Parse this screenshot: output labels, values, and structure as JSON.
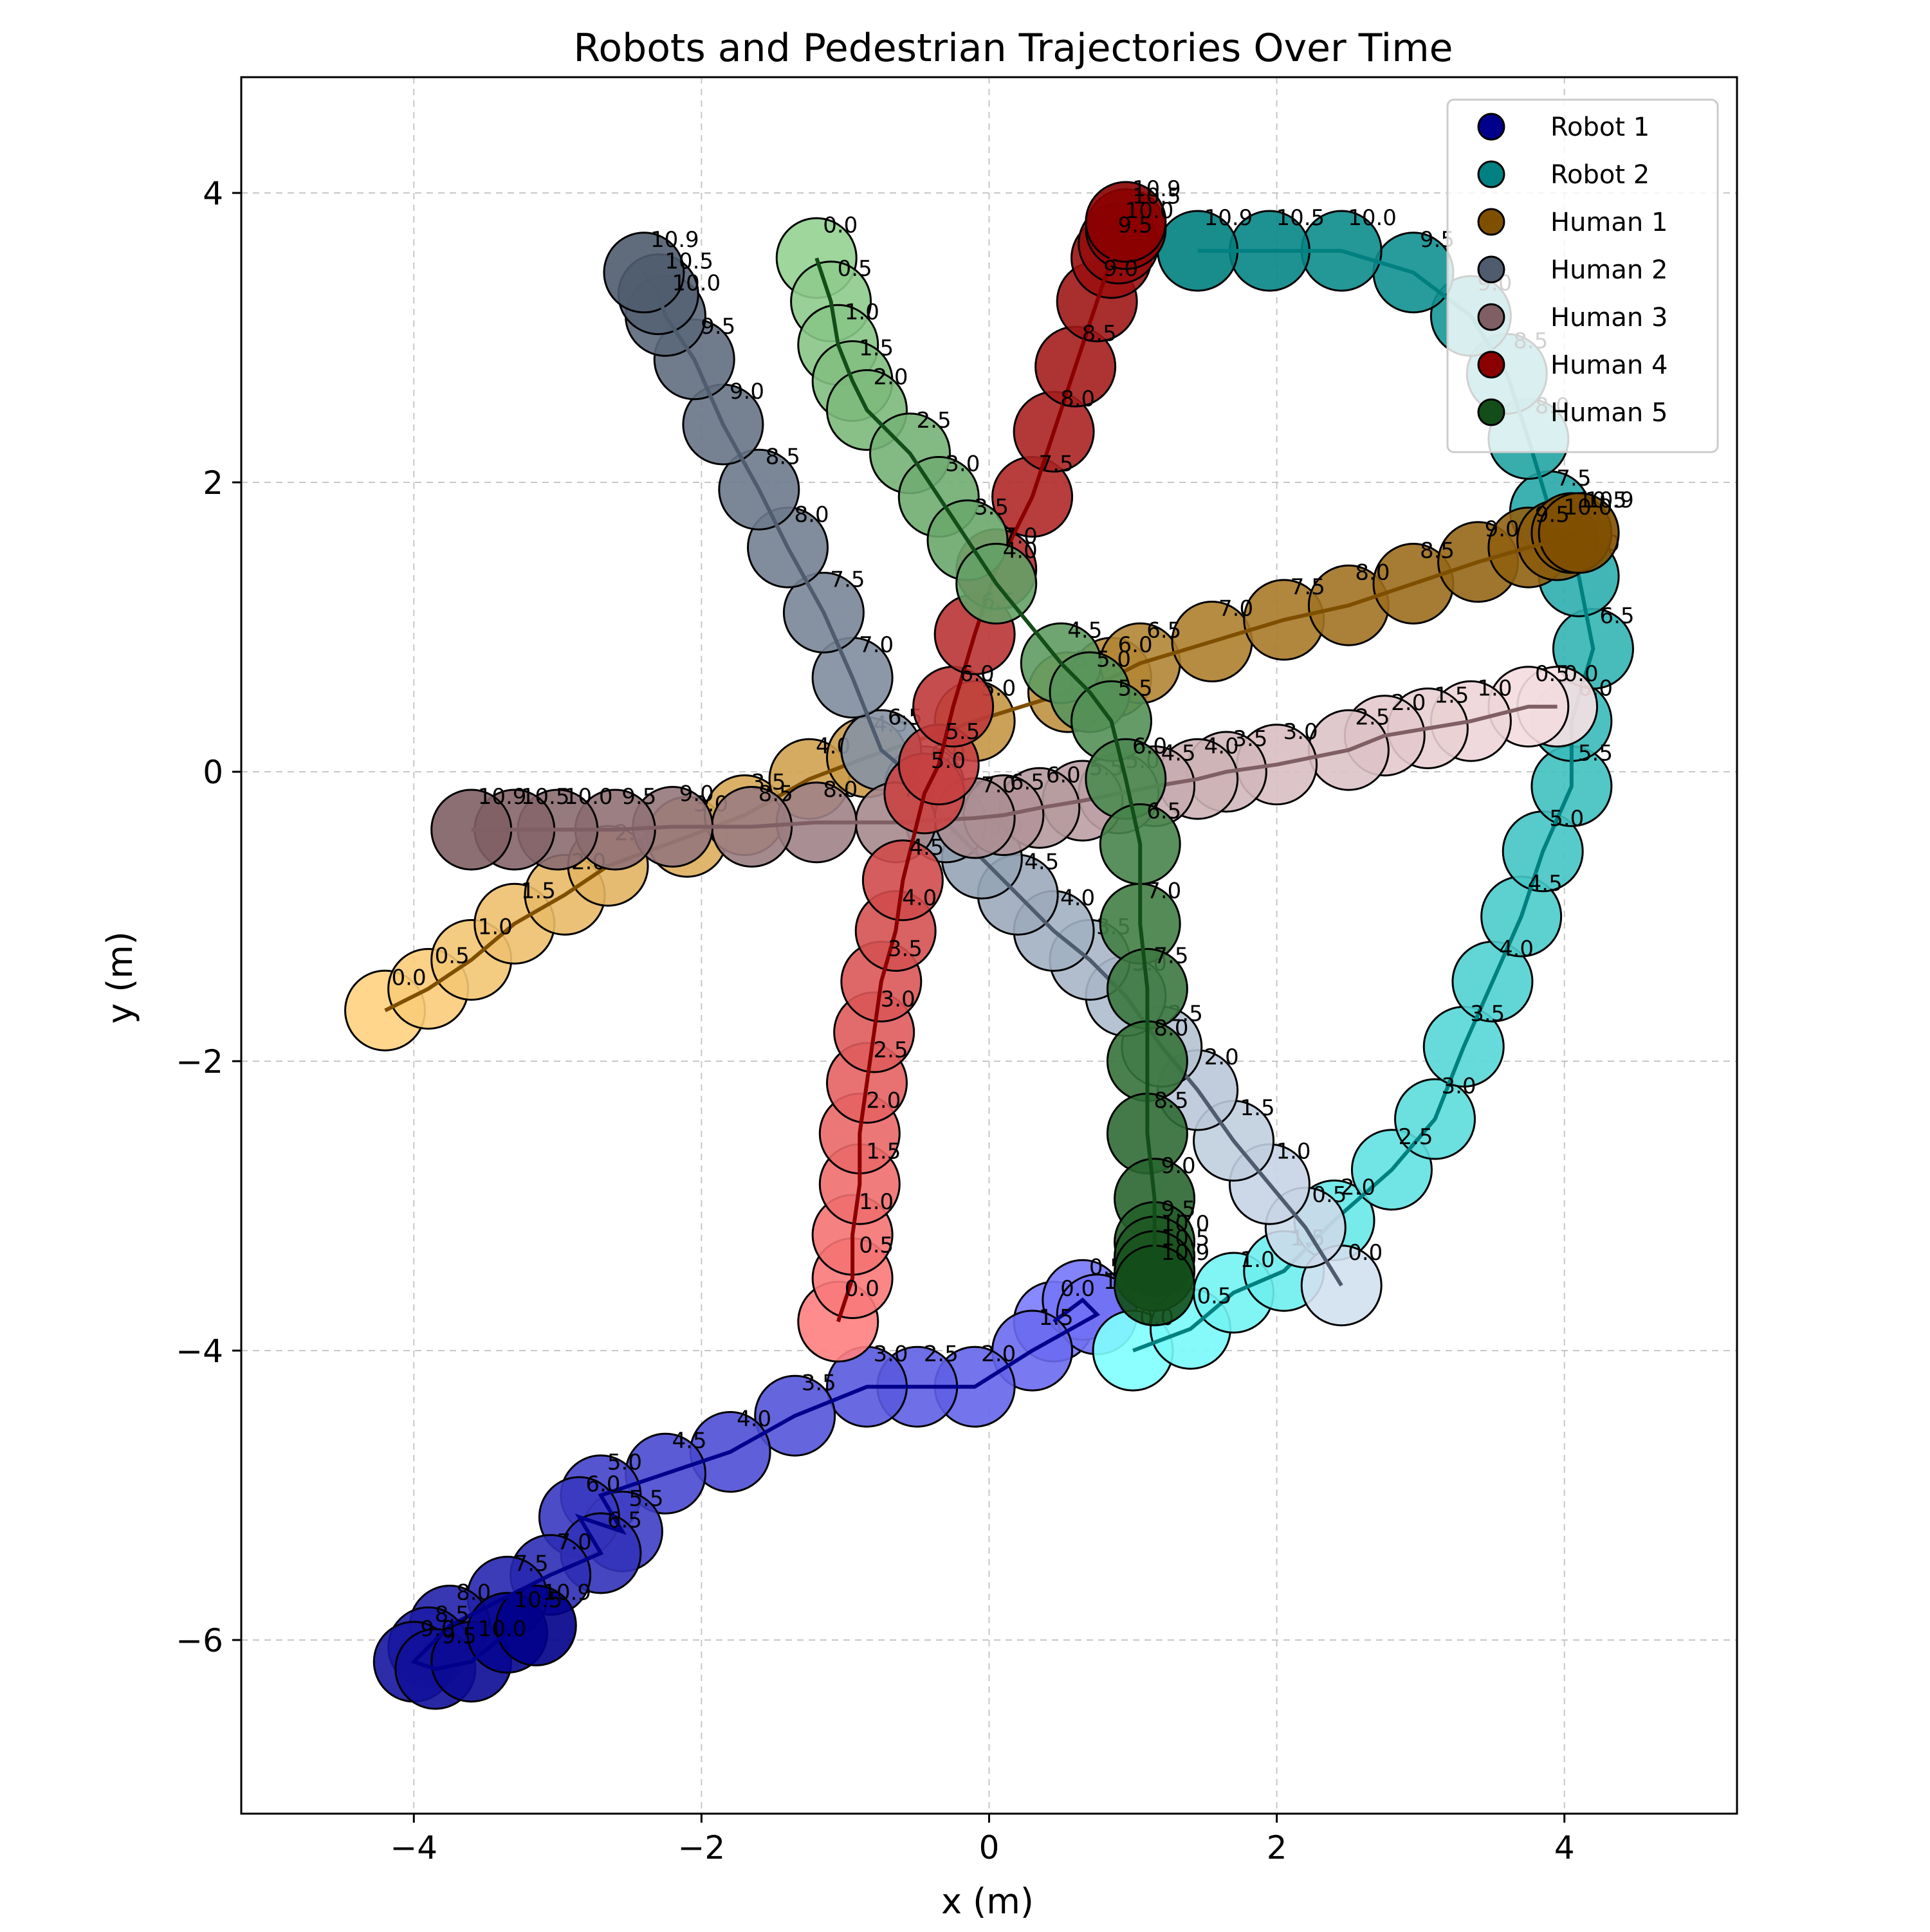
{
  "chart_data": {
    "type": "scatter",
    "title": "Robots and Pedestrian Trajectories Over Time",
    "xlabel": "x (m)",
    "ylabel": "y (m)",
    "xlim": [
      -5.2,
      5.2
    ],
    "ylim": [
      -7.2,
      4.8
    ],
    "xticks": [
      -4,
      -2,
      0,
      2,
      4
    ],
    "yticks": [
      -6,
      -4,
      -2,
      0,
      2,
      4
    ],
    "xtick_labels": [
      "−4",
      "−2",
      "0",
      "2",
      "4"
    ],
    "ytick_labels": [
      "−6",
      "−4",
      "−2",
      "0",
      "2",
      "4"
    ],
    "grid": true,
    "legend_position": "top-right",
    "series": [
      {
        "name": "Robot 1",
        "color": "#00008b",
        "start_color": "#7b7bff",
        "points": [
          {
            "t": "0.0",
            "x": 0.45,
            "y": -3.8
          },
          {
            "t": "0.5",
            "x": 0.65,
            "y": -3.65
          },
          {
            "t": "1.0",
            "x": 0.75,
            "y": -3.75
          },
          {
            "t": "1.5",
            "x": 0.3,
            "y": -4.0
          },
          {
            "t": "2.0",
            "x": -0.1,
            "y": -4.25
          },
          {
            "t": "2.5",
            "x": -0.5,
            "y": -4.25
          },
          {
            "t": "3.0",
            "x": -0.85,
            "y": -4.25
          },
          {
            "t": "3.5",
            "x": -1.35,
            "y": -4.45
          },
          {
            "t": "4.0",
            "x": -1.8,
            "y": -4.7
          },
          {
            "t": "4.5",
            "x": -2.25,
            "y": -4.85
          },
          {
            "t": "5.0",
            "x": -2.7,
            "y": -5.0
          },
          {
            "t": "5.5",
            "x": -2.55,
            "y": -5.25
          },
          {
            "t": "6.0",
            "x": -2.85,
            "y": -5.15
          },
          {
            "t": "6.5",
            "x": -2.7,
            "y": -5.4
          },
          {
            "t": "7.0",
            "x": -3.05,
            "y": -5.55
          },
          {
            "t": "7.5",
            "x": -3.35,
            "y": -5.7
          },
          {
            "t": "8.0",
            "x": -3.75,
            "y": -5.9
          },
          {
            "t": "8.5",
            "x": -3.9,
            "y": -6.05
          },
          {
            "t": "9.0",
            "x": -4.0,
            "y": -6.15
          },
          {
            "t": "9.5",
            "x": -3.85,
            "y": -6.2
          },
          {
            "t": "10.0",
            "x": -3.6,
            "y": -6.15
          },
          {
            "t": "10.5",
            "x": -3.35,
            "y": -5.95
          },
          {
            "t": "10.9",
            "x": -3.15,
            "y": -5.9
          }
        ]
      },
      {
        "name": "Robot 2",
        "color": "#008080",
        "start_color": "#7fffff",
        "points": [
          {
            "t": "0.0",
            "x": 1.0,
            "y": -4.0
          },
          {
            "t": "0.5",
            "x": 1.4,
            "y": -3.85
          },
          {
            "t": "1.0",
            "x": 1.7,
            "y": -3.6
          },
          {
            "t": "1.5",
            "x": 2.05,
            "y": -3.45
          },
          {
            "t": "2.0",
            "x": 2.4,
            "y": -3.1
          },
          {
            "t": "2.5",
            "x": 2.8,
            "y": -2.75
          },
          {
            "t": "3.0",
            "x": 3.1,
            "y": -2.4
          },
          {
            "t": "3.5",
            "x": 3.3,
            "y": -1.9
          },
          {
            "t": "4.0",
            "x": 3.5,
            "y": -1.45
          },
          {
            "t": "4.5",
            "x": 3.7,
            "y": -1.0
          },
          {
            "t": "5.0",
            "x": 3.85,
            "y": -0.55
          },
          {
            "t": "5.5",
            "x": 4.05,
            "y": -0.1
          },
          {
            "t": "6.0",
            "x": 4.05,
            "y": 0.35
          },
          {
            "t": "6.5",
            "x": 4.2,
            "y": 0.85
          },
          {
            "t": "7.0",
            "x": 4.1,
            "y": 1.35
          },
          {
            "t": "7.5",
            "x": 3.9,
            "y": 1.8
          },
          {
            "t": "8.0",
            "x": 3.75,
            "y": 2.3
          },
          {
            "t": "8.5",
            "x": 3.6,
            "y": 2.75
          },
          {
            "t": "9.0",
            "x": 3.35,
            "y": 3.15
          },
          {
            "t": "9.5",
            "x": 2.95,
            "y": 3.45
          },
          {
            "t": "10.0",
            "x": 2.45,
            "y": 3.6
          },
          {
            "t": "10.5",
            "x": 1.95,
            "y": 3.6
          },
          {
            "t": "10.9",
            "x": 1.45,
            "y": 3.6
          }
        ]
      },
      {
        "name": "Human 1",
        "color": "#7f4f00",
        "start_color": "#ffd27f",
        "points": [
          {
            "t": "0.0",
            "x": -4.2,
            "y": -1.65
          },
          {
            "t": "0.5",
            "x": -3.9,
            "y": -1.5
          },
          {
            "t": "1.0",
            "x": -3.6,
            "y": -1.3
          },
          {
            "t": "1.5",
            "x": -3.3,
            "y": -1.05
          },
          {
            "t": "2.0",
            "x": -2.95,
            "y": -0.85
          },
          {
            "t": "2.5",
            "x": -2.65,
            "y": -0.65
          },
          {
            "t": "3.0",
            "x": -2.1,
            "y": -0.45
          },
          {
            "t": "3.5",
            "x": -1.7,
            "y": -0.3
          },
          {
            "t": "4.0",
            "x": -1.25,
            "y": -0.05
          },
          {
            "t": "4.5",
            "x": -0.85,
            "y": 0.1
          },
          {
            "t": "5.0",
            "x": -0.1,
            "y": 0.35
          },
          {
            "t": "5.5",
            "x": 0.55,
            "y": 0.55
          },
          {
            "t": "6.0",
            "x": 0.85,
            "y": 0.65
          },
          {
            "t": "6.5",
            "x": 1.05,
            "y": 0.75
          },
          {
            "t": "7.0",
            "x": 1.55,
            "y": 0.9
          },
          {
            "t": "7.5",
            "x": 2.05,
            "y": 1.05
          },
          {
            "t": "8.0",
            "x": 2.5,
            "y": 1.15
          },
          {
            "t": "8.5",
            "x": 2.95,
            "y": 1.3
          },
          {
            "t": "9.0",
            "x": 3.4,
            "y": 1.45
          },
          {
            "t": "9.5",
            "x": 3.75,
            "y": 1.55
          },
          {
            "t": "10.0",
            "x": 3.95,
            "y": 1.6
          },
          {
            "t": "10.5",
            "x": 4.05,
            "y": 1.65
          },
          {
            "t": "10.9",
            "x": 4.1,
            "y": 1.65
          }
        ]
      },
      {
        "name": "Human 2",
        "color": "#4f5c6e",
        "start_color": "#d2e0f0",
        "points": [
          {
            "t": "0.0",
            "x": 2.45,
            "y": -3.55
          },
          {
            "t": "0.5",
            "x": 2.2,
            "y": -3.15
          },
          {
            "t": "1.0",
            "x": 1.95,
            "y": -2.85
          },
          {
            "t": "1.5",
            "x": 1.7,
            "y": -2.55
          },
          {
            "t": "2.0",
            "x": 1.45,
            "y": -2.2
          },
          {
            "t": "2.5",
            "x": 1.2,
            "y": -1.9
          },
          {
            "t": "3.0",
            "x": 0.95,
            "y": -1.55
          },
          {
            "t": "3.5",
            "x": 0.7,
            "y": -1.3
          },
          {
            "t": "4.0",
            "x": 0.45,
            "y": -1.1
          },
          {
            "t": "4.5",
            "x": 0.2,
            "y": -0.85
          },
          {
            "t": "5.0",
            "x": -0.05,
            "y": -0.6
          },
          {
            "t": "5.5",
            "x": -0.3,
            "y": -0.35
          },
          {
            "t": "6.0",
            "x": -0.45,
            "y": -0.1
          },
          {
            "t": "6.5",
            "x": -0.75,
            "y": 0.15
          },
          {
            "t": "7.0",
            "x": -0.95,
            "y": 0.65
          },
          {
            "t": "7.5",
            "x": -1.15,
            "y": 1.1
          },
          {
            "t": "8.0",
            "x": -1.4,
            "y": 1.55
          },
          {
            "t": "8.5",
            "x": -1.6,
            "y": 1.95
          },
          {
            "t": "9.0",
            "x": -1.85,
            "y": 2.4
          },
          {
            "t": "9.5",
            "x": -2.05,
            "y": 2.85
          },
          {
            "t": "10.0",
            "x": -2.25,
            "y": 3.15
          },
          {
            "t": "10.5",
            "x": -2.3,
            "y": 3.3
          },
          {
            "t": "10.9",
            "x": -2.4,
            "y": 3.45
          }
        ]
      },
      {
        "name": "Human 3",
        "color": "#7f5f64",
        "start_color": "#f9e1e5",
        "points": [
          {
            "t": "0.0",
            "x": 3.95,
            "y": 0.45
          },
          {
            "t": "0.5",
            "x": 3.75,
            "y": 0.45
          },
          {
            "t": "1.0",
            "x": 3.35,
            "y": 0.35
          },
          {
            "t": "1.5",
            "x": 3.05,
            "y": 0.3
          },
          {
            "t": "2.0",
            "x": 2.75,
            "y": 0.25
          },
          {
            "t": "2.5",
            "x": 2.5,
            "y": 0.15
          },
          {
            "t": "3.0",
            "x": 2.0,
            "y": 0.05
          },
          {
            "t": "3.5",
            "x": 1.65,
            "y": 0.0
          },
          {
            "t": "4.0",
            "x": 1.45,
            "y": -0.05
          },
          {
            "t": "4.5",
            "x": 1.15,
            "y": -0.1
          },
          {
            "t": "5.0",
            "x": 0.9,
            "y": -0.15
          },
          {
            "t": "5.5",
            "x": 0.65,
            "y": -0.2
          },
          {
            "t": "6.0",
            "x": 0.35,
            "y": -0.25
          },
          {
            "t": "6.5",
            "x": 0.1,
            "y": -0.3
          },
          {
            "t": "7.0",
            "x": -0.1,
            "y": -0.32
          },
          {
            "t": "7.5",
            "x": -0.65,
            "y": -0.35
          },
          {
            "t": "8.0",
            "x": -1.2,
            "y": -0.35
          },
          {
            "t": "8.5",
            "x": -1.65,
            "y": -0.38
          },
          {
            "t": "9.0",
            "x": -2.2,
            "y": -0.38
          },
          {
            "t": "9.5",
            "x": -2.6,
            "y": -0.4
          },
          {
            "t": "10.0",
            "x": -3.0,
            "y": -0.4
          },
          {
            "t": "10.5",
            "x": -3.3,
            "y": -0.4
          },
          {
            "t": "10.9",
            "x": -3.6,
            "y": -0.4
          }
        ]
      },
      {
        "name": "Human 4",
        "color": "#8b0000",
        "start_color": "#ff7f7f",
        "points": [
          {
            "t": "0.0",
            "x": -1.05,
            "y": -3.8
          },
          {
            "t": "0.5",
            "x": -0.95,
            "y": -3.5
          },
          {
            "t": "1.0",
            "x": -0.95,
            "y": -3.2
          },
          {
            "t": "1.5",
            "x": -0.9,
            "y": -2.85
          },
          {
            "t": "2.0",
            "x": -0.9,
            "y": -2.5
          },
          {
            "t": "2.5",
            "x": -0.85,
            "y": -2.15
          },
          {
            "t": "3.0",
            "x": -0.8,
            "y": -1.8
          },
          {
            "t": "3.5",
            "x": -0.75,
            "y": -1.45
          },
          {
            "t": "4.0",
            "x": -0.65,
            "y": -1.1
          },
          {
            "t": "4.5",
            "x": -0.6,
            "y": -0.75
          },
          {
            "t": "5.0",
            "x": -0.45,
            "y": -0.15
          },
          {
            "t": "5.5",
            "x": -0.35,
            "y": 0.05
          },
          {
            "t": "6.0",
            "x": -0.25,
            "y": 0.45
          },
          {
            "t": "6.5",
            "x": -0.1,
            "y": 0.95
          },
          {
            "t": "7.0",
            "x": 0.05,
            "y": 1.4
          },
          {
            "t": "7.5",
            "x": 0.3,
            "y": 1.9
          },
          {
            "t": "8.0",
            "x": 0.45,
            "y": 2.35
          },
          {
            "t": "8.5",
            "x": 0.6,
            "y": 2.8
          },
          {
            "t": "9.0",
            "x": 0.75,
            "y": 3.25
          },
          {
            "t": "9.5",
            "x": 0.85,
            "y": 3.55
          },
          {
            "t": "10.0",
            "x": 0.9,
            "y": 3.65
          },
          {
            "t": "10.5",
            "x": 0.95,
            "y": 3.75
          },
          {
            "t": "10.9",
            "x": 0.95,
            "y": 3.8
          }
        ]
      },
      {
        "name": "Human 5",
        "color": "#134e1a",
        "start_color": "#93d191",
        "points": [
          {
            "t": "0.0",
            "x": -1.2,
            "y": 3.55
          },
          {
            "t": "0.5",
            "x": -1.1,
            "y": 3.25
          },
          {
            "t": "1.0",
            "x": -1.05,
            "y": 2.95
          },
          {
            "t": "1.5",
            "x": -0.95,
            "y": 2.7
          },
          {
            "t": "2.0",
            "x": -0.85,
            "y": 2.5
          },
          {
            "t": "2.5",
            "x": -0.55,
            "y": 2.2
          },
          {
            "t": "3.0",
            "x": -0.35,
            "y": 1.9
          },
          {
            "t": "3.5",
            "x": -0.15,
            "y": 1.6
          },
          {
            "t": "4.0",
            "x": 0.05,
            "y": 1.3
          },
          {
            "t": "4.5",
            "x": 0.5,
            "y": 0.75
          },
          {
            "t": "5.0",
            "x": 0.7,
            "y": 0.55
          },
          {
            "t": "5.5",
            "x": 0.85,
            "y": 0.35
          },
          {
            "t": "6.0",
            "x": 0.95,
            "y": -0.05
          },
          {
            "t": "6.5",
            "x": 1.05,
            "y": -0.5
          },
          {
            "t": "7.0",
            "x": 1.05,
            "y": -1.05
          },
          {
            "t": "7.5",
            "x": 1.1,
            "y": -1.5
          },
          {
            "t": "8.0",
            "x": 1.1,
            "y": -2.0
          },
          {
            "t": "8.5",
            "x": 1.1,
            "y": -2.5
          },
          {
            "t": "9.0",
            "x": 1.15,
            "y": -2.95
          },
          {
            "t": "9.5",
            "x": 1.15,
            "y": -3.25
          },
          {
            "t": "10.0",
            "x": 1.15,
            "y": -3.35
          },
          {
            "t": "10.5",
            "x": 1.15,
            "y": -3.45
          },
          {
            "t": "10.9",
            "x": 1.15,
            "y": -3.55
          }
        ]
      }
    ]
  }
}
